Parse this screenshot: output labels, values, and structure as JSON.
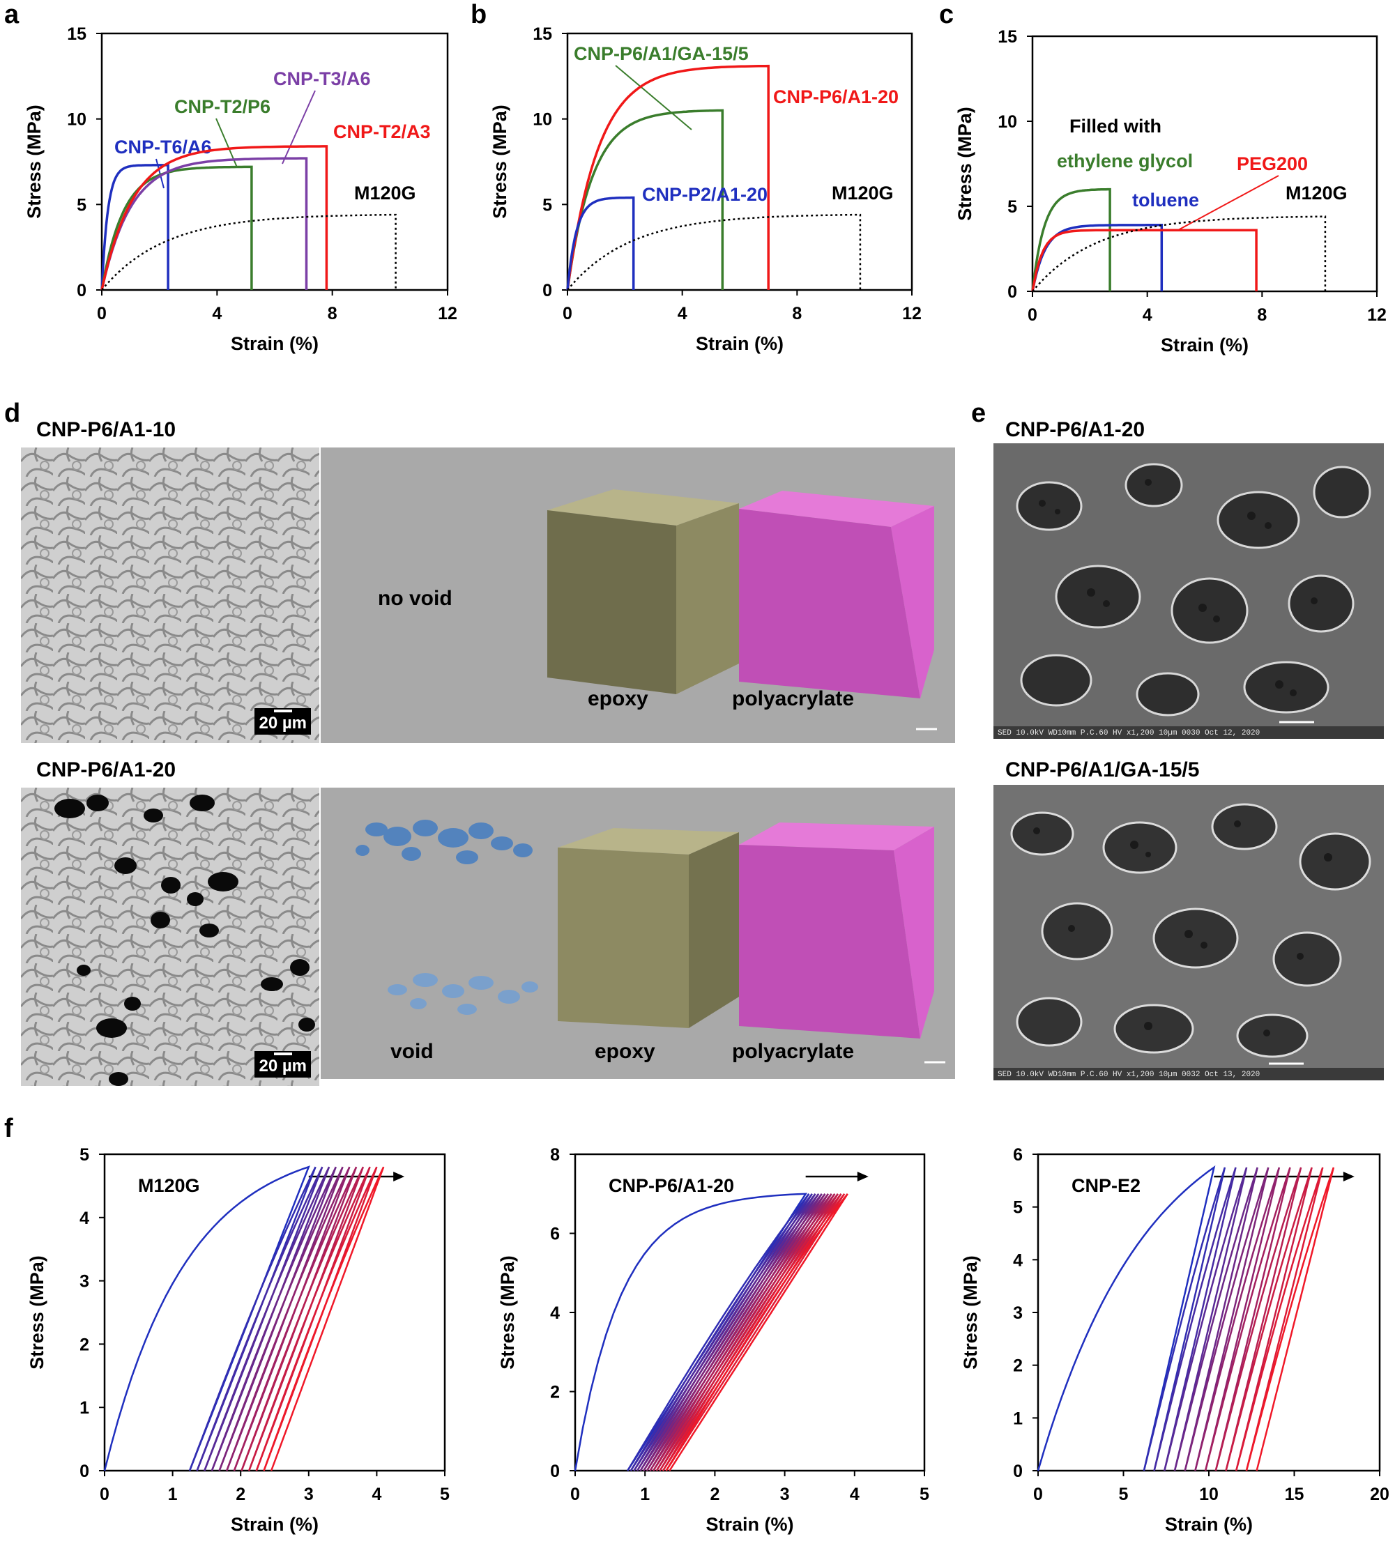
{
  "panels": {
    "a": {
      "letter": "a"
    },
    "b": {
      "letter": "b"
    },
    "c": {
      "letter": "c"
    },
    "d": {
      "letter": "d",
      "top_label": "CNP-P6/A1-10",
      "bottom_label": "CNP-P6/A1-20",
      "scale_text": "20 µm",
      "top_3d_labels": {
        "void": "no void",
        "epoxy": "epoxy",
        "polyacrylate": "polyacrylate"
      },
      "bottom_3d_labels": {
        "void": "void",
        "epoxy": "epoxy",
        "polyacrylate": "polyacrylate"
      }
    },
    "e": {
      "letter": "e",
      "top_label": "CNP-P6/A1-20",
      "bottom_label": "CNP-P6/A1/GA-15/5",
      "top_footer": "SED 10.0kV WD10mm P.C.60 HV x1,200 10µm 0030 Oct 12, 2020",
      "bottom_footer": "SED 10.0kV WD10mm P.C.60 HV x1,200 10µm 0032 Oct 13, 2020"
    },
    "f": {
      "letter": "f"
    }
  },
  "colors": {
    "blue": "#1f2fbf",
    "green": "#3a7d2c",
    "purple": "#7b3fa6",
    "red": "#f01818",
    "black": "#000000",
    "void_blue": "#4a7fc0",
    "epoxy": "#8c8a62",
    "polyacrylate": "#d45cc8",
    "render_bg": "#a9a9a9"
  },
  "chart_data": [
    {
      "id": "a",
      "type": "line",
      "xlabel": "Strain (%)",
      "ylabel": "Stress (MPa)",
      "xlim": [
        0,
        12
      ],
      "ylim": [
        0,
        15
      ],
      "xticks": [
        "0",
        "4",
        "8",
        "12"
      ],
      "yticks": [
        "0",
        "5",
        "10",
        "15"
      ],
      "series": [
        {
          "name": "CNP-T6/A6",
          "color": "#1f2fbf",
          "style": "solid",
          "fracture_strain": 2.3,
          "fracture_stress": 7.3,
          "k": 0.6
        },
        {
          "name": "CNP-T2/P6",
          "color": "#3a7d2c",
          "style": "solid",
          "fracture_strain": 5.2,
          "fracture_stress": 7.2,
          "k": 2.2
        },
        {
          "name": "CNP-T3/A6",
          "color": "#7b3fa6",
          "style": "solid",
          "fracture_strain": 7.1,
          "fracture_stress": 7.7,
          "k": 3.0
        },
        {
          "name": "CNP-T2/A3",
          "color": "#f01818",
          "style": "solid",
          "fracture_strain": 7.8,
          "fracture_stress": 8.4,
          "k": 3.2
        },
        {
          "name": "M120G",
          "color": "#000000",
          "style": "dotted",
          "fracture_strain": 10.2,
          "fracture_stress": 4.4,
          "k": 6.5
        }
      ]
    },
    {
      "id": "b",
      "type": "line",
      "xlabel": "Strain (%)",
      "ylabel": "Stress (MPa)",
      "xlim": [
        0,
        12
      ],
      "ylim": [
        0,
        15
      ],
      "xticks": [
        "0",
        "4",
        "8",
        "12"
      ],
      "yticks": [
        "0",
        "5",
        "10",
        "15"
      ],
      "series": [
        {
          "name": "CNP-P6/A1/GA-15/5",
          "color": "#3a7d2c",
          "style": "solid",
          "fracture_strain": 5.4,
          "fracture_stress": 10.5,
          "k": 2.6
        },
        {
          "name": "CNP-P6/A1-20",
          "color": "#f01818",
          "style": "solid",
          "fracture_strain": 7.0,
          "fracture_stress": 13.1,
          "k": 3.2
        },
        {
          "name": "CNP-P2/A1-20",
          "color": "#1f2fbf",
          "style": "solid",
          "fracture_strain": 2.3,
          "fracture_stress": 5.4,
          "k": 0.9
        },
        {
          "name": "M120G",
          "color": "#000000",
          "style": "dotted",
          "fracture_strain": 10.2,
          "fracture_stress": 4.4,
          "k": 6.5
        }
      ]
    },
    {
      "id": "c",
      "type": "line",
      "xlabel": "Strain (%)",
      "ylabel": "Stress (MPa)",
      "xlim": [
        0,
        12
      ],
      "ylim": [
        0,
        15
      ],
      "xticks": [
        "0",
        "4",
        "8",
        "12"
      ],
      "yticks": [
        "0",
        "5",
        "10",
        "15"
      ],
      "annotation": "Filled with",
      "series": [
        {
          "name": "ethylene glycol",
          "color": "#3a7d2c",
          "style": "solid",
          "fracture_strain": 2.7,
          "fracture_stress": 6.0,
          "k": 1.2
        },
        {
          "name": "toluene",
          "color": "#1f2fbf",
          "style": "solid",
          "fracture_strain": 4.5,
          "fracture_stress": 3.9,
          "k": 1.3
        },
        {
          "name": "PEG200",
          "color": "#f01818",
          "style": "solid",
          "fracture_strain": 7.8,
          "fracture_stress": 3.6,
          "k": 1.0
        },
        {
          "name": "M120G",
          "color": "#000000",
          "style": "dotted",
          "fracture_strain": 10.2,
          "fracture_stress": 4.4,
          "k": 6.5
        }
      ]
    },
    {
      "id": "f1",
      "type": "line",
      "title": "M120G",
      "xlabel": "Strain (%)",
      "ylabel": "Stress (MPa)",
      "xlim": [
        0,
        5
      ],
      "ylim": [
        0,
        5
      ],
      "xticks": [
        "0",
        "1",
        "2",
        "3",
        "4",
        "5"
      ],
      "yticks": [
        "0",
        "1",
        "2",
        "3",
        "4",
        "5"
      ],
      "cycles": 12,
      "peak_stress": 4.8,
      "first_peak_strain": 3.0,
      "last_peak_strain": 4.1,
      "first_residual_strain": 1.25,
      "last_residual_strain": 2.45,
      "k": 2.5
    },
    {
      "id": "f2",
      "type": "line",
      "title": "CNP-P6/A1-20",
      "xlabel": "Strain (%)",
      "ylabel": "Stress (MPa)",
      "xlim": [
        0,
        5
      ],
      "ylim": [
        0,
        8
      ],
      "xticks": [
        "0",
        "1",
        "2",
        "3",
        "4",
        "5"
      ],
      "yticks": [
        "0",
        "2",
        "4",
        "6",
        "8"
      ],
      "cycles": 14,
      "peak_stress": 7.0,
      "first_peak_strain": 3.3,
      "last_peak_strain": 3.9,
      "first_residual_strain": 0.75,
      "last_residual_strain": 1.35,
      "k": 5.0
    },
    {
      "id": "f3",
      "type": "line",
      "title": "CNP-E2",
      "xlabel": "Strain (%)",
      "ylabel": "Stress (MPa)",
      "xlim": [
        0,
        20
      ],
      "ylim": [
        0,
        6
      ],
      "xticks": [
        "0",
        "5",
        "10",
        "15",
        "20"
      ],
      "yticks": [
        "0",
        "1",
        "2",
        "3",
        "4",
        "5",
        "6"
      ],
      "cycles": 12,
      "peak_stress": 5.75,
      "first_peak_strain": 10.3,
      "last_peak_strain": 17.3,
      "first_residual_strain": 6.2,
      "last_residual_strain": 12.8,
      "k": 1.6
    }
  ]
}
